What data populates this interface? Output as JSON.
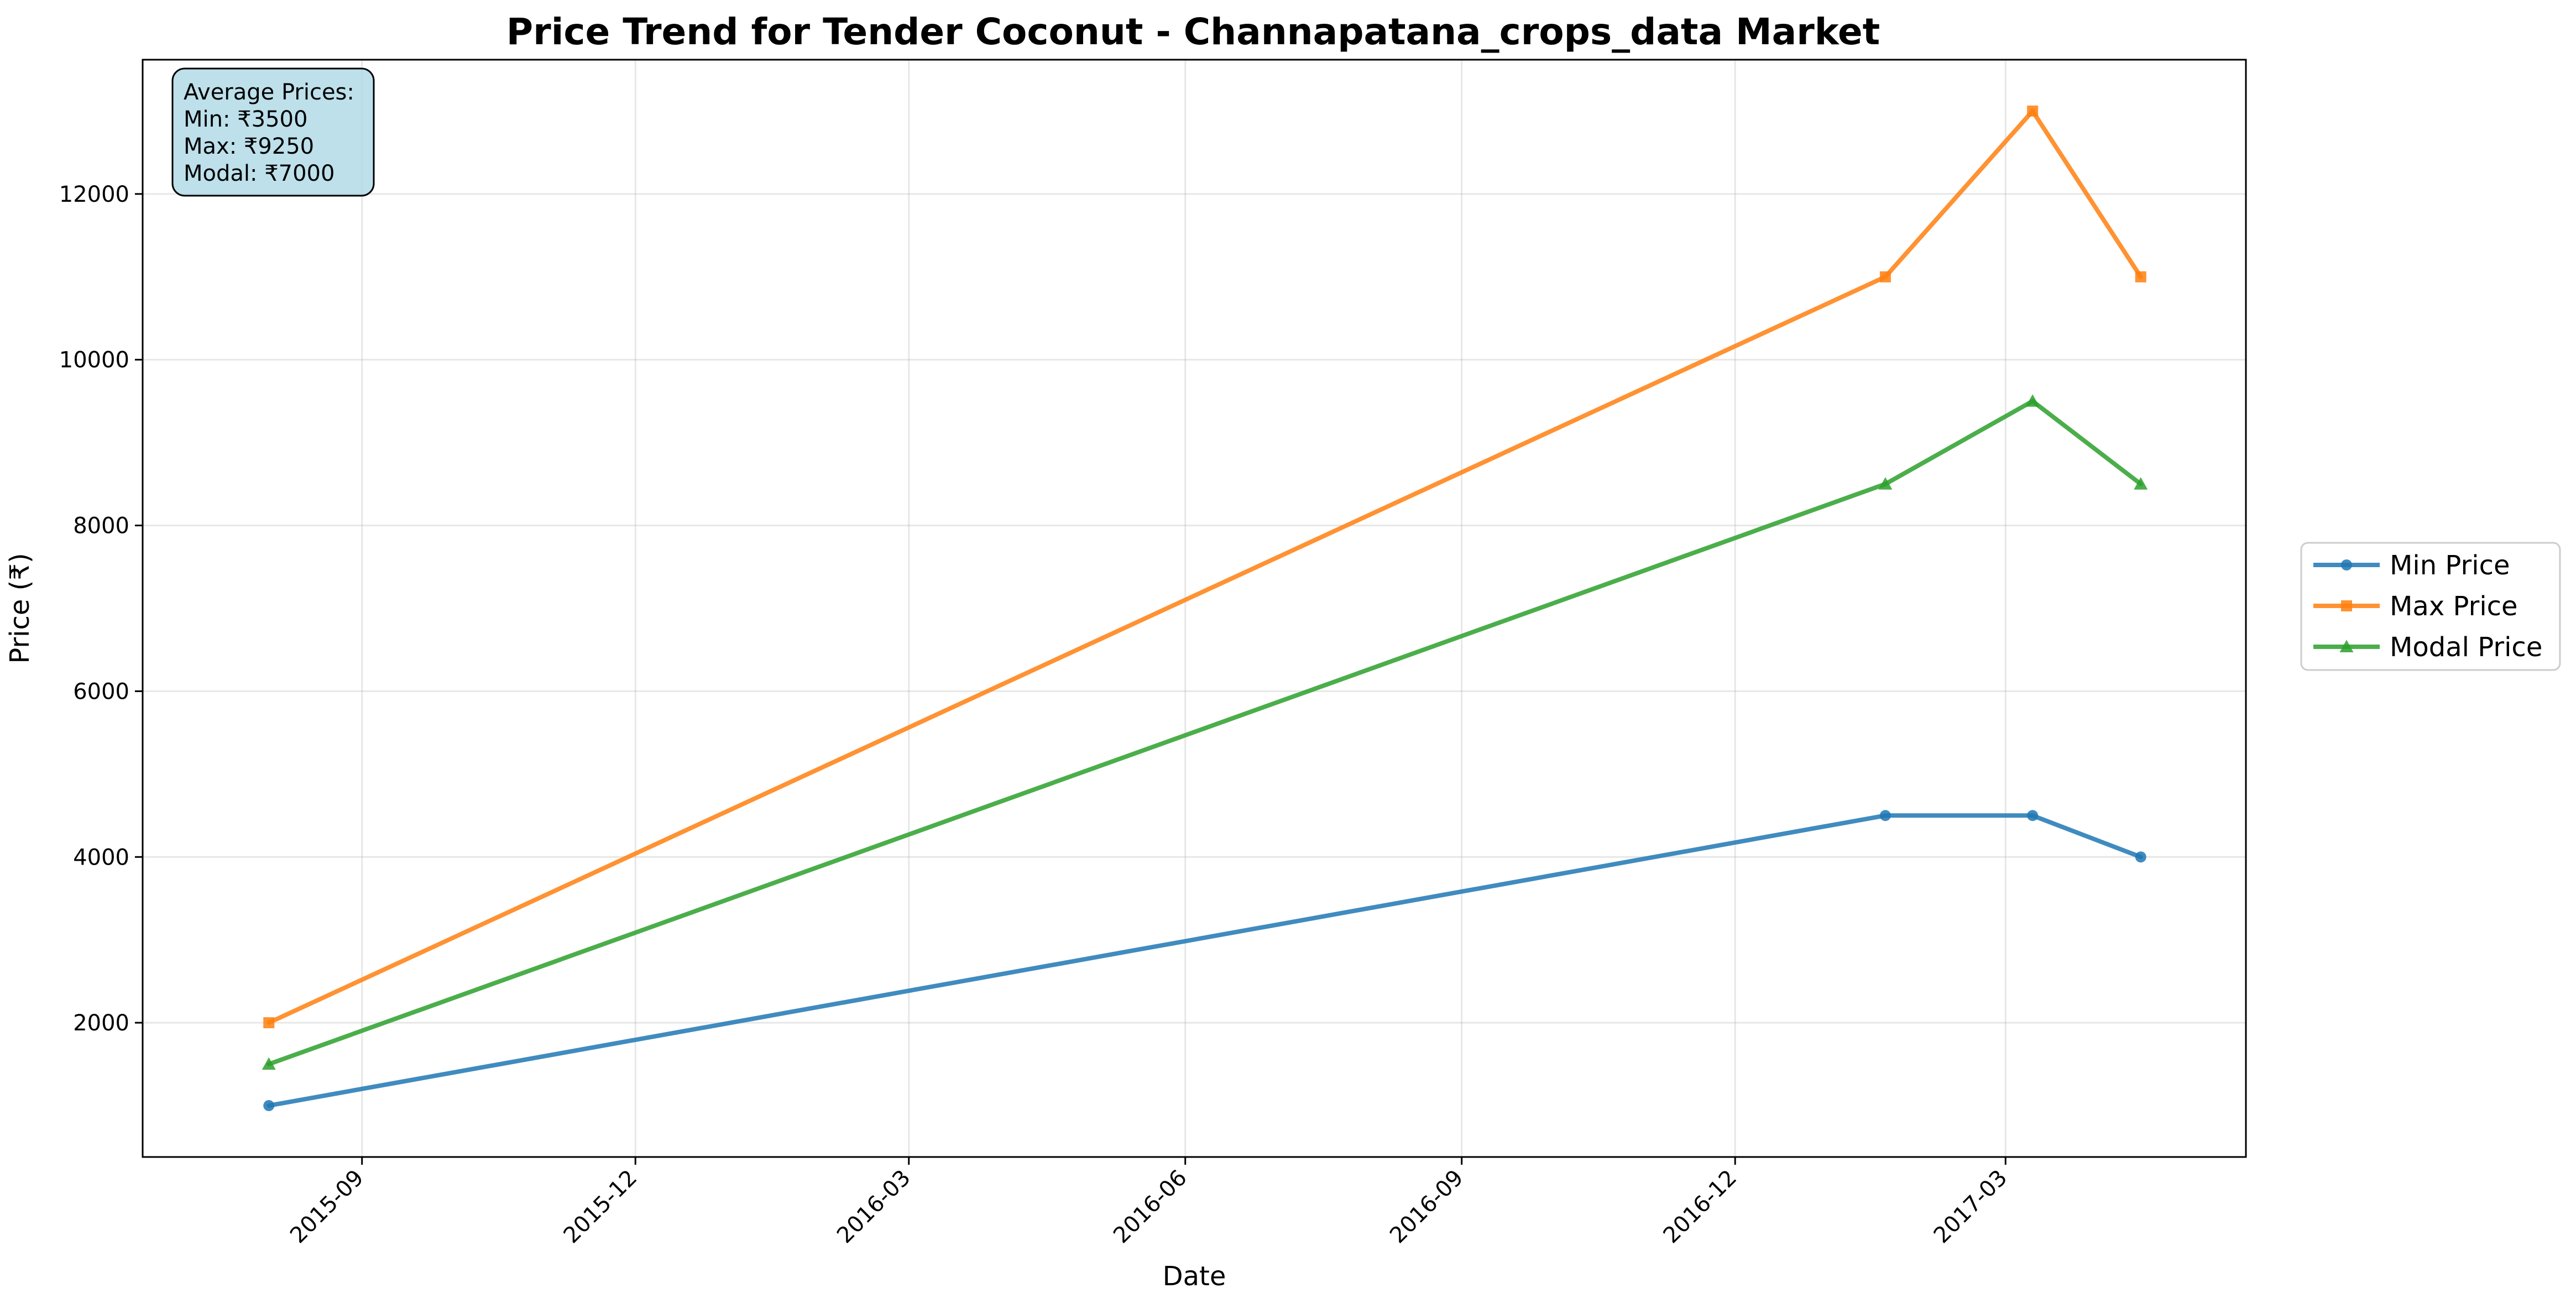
{
  "chart_data": {
    "type": "line",
    "title": "Price Trend for Tender Coconut - Channapatana_crops_data Market",
    "xlabel": "Date",
    "ylabel": "Price (₹)",
    "x_dates": [
      "2015-08-01",
      "2017-01-20",
      "2017-03-10",
      "2017-04-15"
    ],
    "xlim": [
      "2015-06-20",
      "2017-05-20"
    ],
    "ylim": [
      380,
      13620
    ],
    "x_ticks": [
      "2015-09",
      "2015-12",
      "2016-03",
      "2016-06",
      "2016-09",
      "2016-12",
      "2017-03"
    ],
    "y_ticks": [
      2000,
      4000,
      6000,
      8000,
      10000,
      12000
    ],
    "grid": true,
    "legend_position": "right, outside plot",
    "series": [
      {
        "name": "Min Price",
        "color": "#1f77b4",
        "marker": "circle",
        "values": [
          1000,
          4500,
          4500,
          4000
        ]
      },
      {
        "name": "Max Price",
        "color": "#ff7f0e",
        "marker": "square",
        "values": [
          2000,
          11000,
          13000,
          11000
        ]
      },
      {
        "name": "Modal Price",
        "color": "#2ca02c",
        "marker": "triangle",
        "values": [
          1500,
          8500,
          9500,
          8500
        ]
      }
    ],
    "annotation": {
      "lines": [
        "Average Prices:",
        "Min: ₹3500",
        "Max: ₹9250",
        "Modal: ₹7000"
      ],
      "background": "#add8e6"
    }
  }
}
